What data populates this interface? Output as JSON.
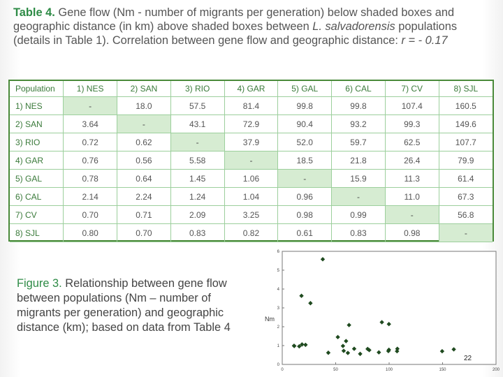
{
  "title": {
    "label": "Table 4.",
    "text_a": " Gene flow (Nm - number of migrants per generation) below shaded boxes  and geographic distance (in km) above shaded boxes between ",
    "species": "L. salvadorensis",
    "text_b": " populations (details in Table 1). Correlation between gene flow and geographic distance: ",
    "corr": "r = - 0.17"
  },
  "table": {
    "header": [
      "Population",
      "1) NES",
      "2) SAN",
      "3) RIO",
      "4) GAR",
      "5) GAL",
      "6) CAL",
      "7) CV",
      "8) SJL"
    ],
    "rows": [
      [
        "1) NES",
        "-",
        "18.0",
        "57.5",
        "81.4",
        "99.8",
        "99.8",
        "107.4",
        "160.5"
      ],
      [
        "2) SAN",
        "3.64",
        "-",
        "43.1",
        "72.9",
        "90.4",
        "93.2",
        "99.3",
        "149.6"
      ],
      [
        "3) RIO",
        "0.72",
        "0.62",
        "-",
        "37.9",
        "52.0",
        "59.7",
        "62.5",
        "107.7"
      ],
      [
        "4) GAR",
        "0.76",
        "0.56",
        "5.58",
        "-",
        "18.5",
        "21.8",
        "26.4",
        "79.9"
      ],
      [
        "5) GAL",
        "0.78",
        "0.64",
        "1.45",
        "1.06",
        "-",
        "15.9",
        "11.3",
        "61.4"
      ],
      [
        "6) CAL",
        "2.14",
        "2.24",
        "1.24",
        "1.04",
        "0.96",
        "-",
        "11.0",
        "67.3"
      ],
      [
        "7) CV",
        "0.70",
        "0.71",
        "2.09",
        "3.25",
        "0.98",
        "0.99",
        "-",
        "56.8"
      ],
      [
        "8) SJL",
        "0.80",
        "0.70",
        "0.83",
        "0.82",
        "0.61",
        "0.83",
        "0.98",
        "-"
      ]
    ]
  },
  "figure_caption": {
    "label": "Figure 3.",
    "text": " Relationship between gene flow between populations (Nm – number of migrants per generation) and geographic distance (km); based on data from Table 4"
  },
  "chart_data": {
    "type": "scatter",
    "title": "",
    "xlabel": "",
    "ylabel": "Nm",
    "xlim": [
      0,
      200
    ],
    "ylim": [
      0,
      6
    ],
    "xticks": [
      "0",
      "50",
      "100",
      "150",
      "200"
    ],
    "yticks": [
      "0",
      "1",
      "2",
      "3",
      "4",
      "5",
      "6"
    ],
    "grid": false,
    "legend": "none",
    "marker_color": "#1f4a1f",
    "points": [
      {
        "x": 18.0,
        "y": 3.64
      },
      {
        "x": 57.5,
        "y": 0.72
      },
      {
        "x": 81.4,
        "y": 0.76
      },
      {
        "x": 99.8,
        "y": 0.78
      },
      {
        "x": 99.8,
        "y": 2.14
      },
      {
        "x": 107.4,
        "y": 0.7
      },
      {
        "x": 160.5,
        "y": 0.8
      },
      {
        "x": 43.1,
        "y": 0.62
      },
      {
        "x": 72.9,
        "y": 0.56
      },
      {
        "x": 90.4,
        "y": 0.64
      },
      {
        "x": 93.2,
        "y": 2.24
      },
      {
        "x": 99.3,
        "y": 0.71
      },
      {
        "x": 149.6,
        "y": 0.7
      },
      {
        "x": 37.9,
        "y": 5.58
      },
      {
        "x": 52.0,
        "y": 1.45
      },
      {
        "x": 59.7,
        "y": 1.24
      },
      {
        "x": 62.5,
        "y": 2.09
      },
      {
        "x": 107.7,
        "y": 0.83
      },
      {
        "x": 18.5,
        "y": 1.06
      },
      {
        "x": 21.8,
        "y": 1.04
      },
      {
        "x": 26.4,
        "y": 3.25
      },
      {
        "x": 79.9,
        "y": 0.82
      },
      {
        "x": 15.9,
        "y": 0.96
      },
      {
        "x": 11.3,
        "y": 0.98
      },
      {
        "x": 61.4,
        "y": 0.61
      },
      {
        "x": 11.0,
        "y": 0.99
      },
      {
        "x": 67.3,
        "y": 0.83
      },
      {
        "x": 56.8,
        "y": 0.98
      }
    ]
  },
  "page_number": "22"
}
